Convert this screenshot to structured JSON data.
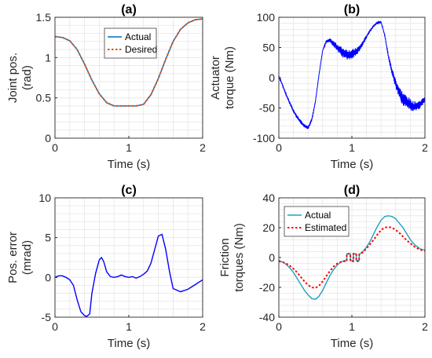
{
  "chart_data": [
    {
      "panel": "a",
      "type": "line",
      "title": "(a)",
      "xlabel": "Time (s)",
      "ylabel": [
        "Joint pos.",
        "(rad)"
      ],
      "xlim": [
        0,
        2
      ],
      "ylim": [
        0,
        1.5
      ],
      "xticks": [
        0,
        1,
        2
      ],
      "xtick_labels": [
        "0",
        "1",
        "2"
      ],
      "yticks": [
        0,
        0.5,
        1,
        1.5
      ],
      "ytick_labels": [
        "0",
        "0.5",
        "1",
        "1.5"
      ],
      "grid": true,
      "legend": "top-center",
      "series": [
        {
          "name": "Actual",
          "color": "#0072BD",
          "style": "solid",
          "x": [
            0,
            0.1,
            0.2,
            0.3,
            0.4,
            0.5,
            0.6,
            0.7,
            0.8,
            0.9,
            1.0,
            1.1,
            1.2,
            1.3,
            1.4,
            1.5,
            1.6,
            1.7,
            1.8,
            1.9,
            2.0
          ],
          "y": [
            1.26,
            1.25,
            1.21,
            1.1,
            0.92,
            0.72,
            0.55,
            0.44,
            0.4,
            0.4,
            0.4,
            0.4,
            0.42,
            0.54,
            0.74,
            0.98,
            1.2,
            1.35,
            1.43,
            1.47,
            1.48
          ]
        },
        {
          "name": "Desired",
          "color": "#D95319",
          "style": "dotted",
          "x": [
            0,
            0.1,
            0.2,
            0.3,
            0.4,
            0.5,
            0.6,
            0.7,
            0.8,
            0.9,
            1.0,
            1.1,
            1.2,
            1.3,
            1.4,
            1.5,
            1.6,
            1.7,
            1.8,
            1.9,
            2.0
          ],
          "y": [
            1.26,
            1.25,
            1.21,
            1.1,
            0.92,
            0.72,
            0.55,
            0.44,
            0.4,
            0.4,
            0.4,
            0.4,
            0.42,
            0.54,
            0.74,
            0.98,
            1.2,
            1.35,
            1.43,
            1.47,
            1.48
          ]
        }
      ]
    },
    {
      "panel": "b",
      "type": "line",
      "title": "(b)",
      "xlabel": "Time (s)",
      "ylabel": [
        "Actuator",
        "torque (Nm)"
      ],
      "xlim": [
        0,
        2
      ],
      "ylim": [
        -100,
        100
      ],
      "xticks": [
        0,
        1,
        2
      ],
      "xtick_labels": [
        "0",
        "1",
        "2"
      ],
      "yticks": [
        -100,
        -50,
        0,
        50,
        100
      ],
      "ytick_labels": [
        "-100",
        "-50",
        "0",
        "50",
        "100"
      ],
      "grid": true,
      "series": [
        {
          "color": "#0000FF",
          "style": "solid",
          "noisy": true,
          "x": [
            0,
            0.05,
            0.1,
            0.15,
            0.2,
            0.25,
            0.3,
            0.35,
            0.4,
            0.45,
            0.5,
            0.55,
            0.6,
            0.65,
            0.7,
            0.75,
            0.8,
            0.85,
            0.9,
            0.95,
            1.0,
            1.05,
            1.1,
            1.15,
            1.2,
            1.25,
            1.3,
            1.35,
            1.4,
            1.45,
            1.5,
            1.55,
            1.6,
            1.65,
            1.7,
            1.75,
            1.8,
            1.85,
            1.9,
            1.95,
            2.0
          ],
          "y": [
            2,
            -12,
            -28,
            -42,
            -55,
            -65,
            -73,
            -80,
            -83,
            -70,
            -40,
            5,
            45,
            60,
            62,
            56,
            50,
            44,
            40,
            38,
            39,
            42,
            48,
            57,
            68,
            78,
            86,
            91,
            92,
            70,
            35,
            10,
            -10,
            -25,
            -35,
            -40,
            -45,
            -48,
            -47,
            -42,
            -35
          ],
          "noise": [
            1,
            2,
            2,
            3,
            3,
            3,
            3,
            3,
            3,
            3,
            2,
            1,
            1,
            2,
            3,
            5,
            6,
            8,
            9,
            9,
            8,
            7,
            5,
            4,
            3,
            2,
            1,
            1,
            1,
            2,
            4,
            6,
            8,
            10,
            11,
            11,
            10,
            9,
            8,
            6,
            5
          ]
        }
      ]
    },
    {
      "panel": "c",
      "type": "line",
      "title": "(c)",
      "xlabel": "Time (s)",
      "ylabel": [
        "Pos. error",
        "(mrad)"
      ],
      "xlim": [
        0,
        2
      ],
      "ylim": [
        -5,
        10
      ],
      "xticks": [
        0,
        1,
        2
      ],
      "xtick_labels": [
        "0",
        "1",
        "2"
      ],
      "yticks": [
        -5,
        0,
        5,
        10
      ],
      "ytick_labels": [
        "-5",
        "0",
        "5",
        "10"
      ],
      "grid": true,
      "series": [
        {
          "color": "#0000FF",
          "style": "solid",
          "x": [
            0,
            0.05,
            0.1,
            0.15,
            0.2,
            0.25,
            0.3,
            0.35,
            0.4,
            0.43,
            0.47,
            0.5,
            0.55,
            0.6,
            0.63,
            0.66,
            0.7,
            0.75,
            0.8,
            0.85,
            0.9,
            0.95,
            1.0,
            1.05,
            1.1,
            1.15,
            1.2,
            1.25,
            1.3,
            1.35,
            1.4,
            1.45,
            1.5,
            1.55,
            1.6,
            1.7,
            1.8,
            1.9,
            2.0
          ],
          "y": [
            0,
            0.2,
            0.2,
            0,
            -0.3,
            -1.0,
            -2.8,
            -4.3,
            -4.8,
            -4.9,
            -4.6,
            -2.0,
            0.5,
            2.2,
            2.5,
            2.0,
            0.7,
            0.1,
            0,
            0.1,
            0.3,
            0.1,
            0,
            0.1,
            -0.1,
            0.1,
            0.4,
            0.8,
            1.8,
            3.5,
            5.2,
            5.4,
            3.5,
            0.8,
            -1.4,
            -1.8,
            -1.5,
            -0.9,
            -0.3
          ]
        }
      ]
    },
    {
      "panel": "d",
      "type": "line",
      "title": "(d)",
      "xlabel": "Time (s)",
      "ylabel": [
        "Friction",
        "torques (Nm)"
      ],
      "xlim": [
        0,
        2
      ],
      "ylim": [
        -40,
        40
      ],
      "xticks": [
        0,
        1,
        2
      ],
      "xtick_labels": [
        "0",
        "1",
        "2"
      ],
      "yticks": [
        -40,
        -20,
        0,
        20,
        40
      ],
      "ytick_labels": [
        "-40",
        "-20",
        "0",
        "20",
        "40"
      ],
      "grid": true,
      "legend": "top-left",
      "series": [
        {
          "name": "Actual",
          "color": "#1CA3BF",
          "style": "solid",
          "x": [
            0,
            0.05,
            0.1,
            0.15,
            0.2,
            0.25,
            0.3,
            0.35,
            0.4,
            0.45,
            0.5,
            0.55,
            0.6,
            0.65,
            0.7,
            0.75,
            0.8,
            0.85,
            0.9,
            0.93,
            0.93,
            0.98,
            0.98,
            1.02,
            1.02,
            1.06,
            1.06,
            1.1,
            1.1,
            1.15,
            1.2,
            1.25,
            1.3,
            1.35,
            1.4,
            1.45,
            1.5,
            1.55,
            1.6,
            1.65,
            1.7,
            1.75,
            1.8,
            1.85,
            1.9,
            1.95,
            2.0
          ],
          "y": [
            -2,
            -3,
            -4.5,
            -7,
            -10,
            -14,
            -18,
            -22,
            -25,
            -27.5,
            -28,
            -26,
            -22,
            -17,
            -12,
            -8,
            -5,
            -3,
            -2,
            -2,
            2.5,
            2.5,
            -2,
            -2,
            2.5,
            2.5,
            -2,
            -2,
            2,
            4,
            7,
            11,
            16,
            21,
            25,
            27.5,
            28,
            27.5,
            26,
            23,
            20,
            16,
            12,
            9,
            7,
            5.5,
            5
          ]
        },
        {
          "name": "Estimated",
          "color": "#FF0000",
          "style": "dotted",
          "x": [
            0,
            0.05,
            0.1,
            0.15,
            0.2,
            0.25,
            0.3,
            0.35,
            0.4,
            0.45,
            0.5,
            0.55,
            0.6,
            0.65,
            0.7,
            0.75,
            0.8,
            0.85,
            0.9,
            0.93,
            0.93,
            0.98,
            0.98,
            1.02,
            1.02,
            1.06,
            1.06,
            1.1,
            1.1,
            1.15,
            1.2,
            1.25,
            1.3,
            1.35,
            1.4,
            1.45,
            1.5,
            1.55,
            1.6,
            1.65,
            1.7,
            1.75,
            1.8,
            1.85,
            1.9,
            1.95,
            2.0
          ],
          "y": [
            -2.5,
            -3,
            -4,
            -5.5,
            -7.5,
            -10,
            -13,
            -16,
            -18.5,
            -20,
            -20.5,
            -19,
            -16,
            -12.5,
            -9,
            -6,
            -4,
            -3,
            -2.5,
            -2.5,
            2.5,
            2.5,
            -2.5,
            -2.5,
            2.5,
            2.5,
            -2.5,
            -2.5,
            2,
            3.5,
            6,
            9,
            12,
            15.5,
            18.5,
            20,
            20.5,
            20,
            18.5,
            16.5,
            14,
            11.5,
            9.5,
            7.5,
            6,
            5,
            4.5
          ]
        }
      ]
    }
  ]
}
